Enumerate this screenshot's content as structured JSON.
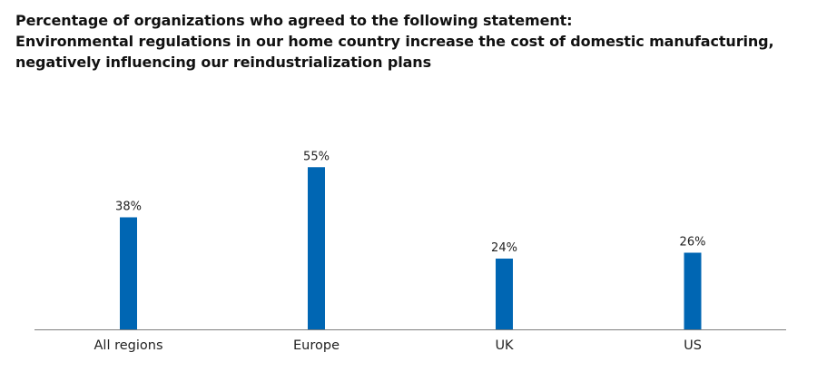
{
  "title": {
    "line1": "Percentage of organizations who agreed to the following statement:",
    "line2": "Environmental regulations in our home country increase the cost of domestic manufacturing,",
    "line3": "negatively influencing our reindustrialization plans"
  },
  "colors": {
    "bar": "#0066b3",
    "axis": "#7f7f7f",
    "text": "#222222"
  },
  "chart_data": {
    "type": "bar",
    "title": "Percentage of organizations who agreed to the following statement: Environmental regulations in our home country increase the cost of domestic manufacturing, negatively influencing our reindustrialization plans",
    "categories": [
      "All regions",
      "Europe",
      "UK",
      "US"
    ],
    "values": [
      38,
      55,
      24,
      26
    ],
    "value_labels": [
      "38%",
      "55%",
      "24%",
      "26%"
    ],
    "xlabel": "",
    "ylabel": "",
    "ylim": [
      0,
      100
    ],
    "grid": false,
    "legend": "none"
  }
}
